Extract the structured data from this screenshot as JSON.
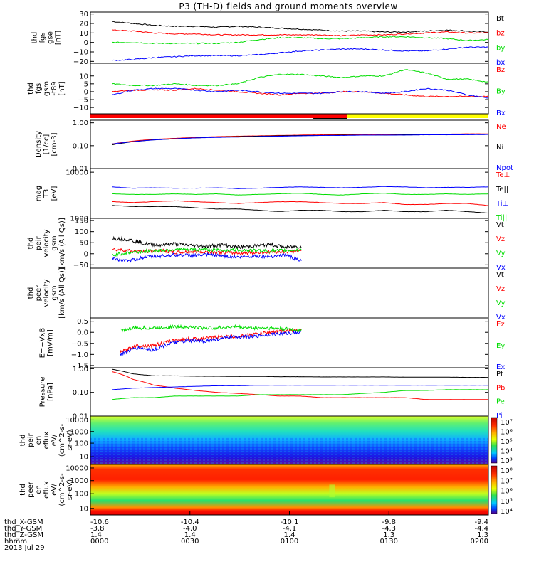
{
  "title": "P3 (TH-D) fields and ground moments overview",
  "date_label": "2013 Jul 29",
  "ephemeris": {
    "rows": [
      {
        "label": "thd_X-GSM",
        "values": [
          "-10.6",
          "-10.4",
          "-10.1",
          "-9.8",
          "-9.4"
        ]
      },
      {
        "label": "thd_Y-GSM",
        "values": [
          "-3.8",
          "-4.0",
          "-4.1",
          "-4.3",
          "-4.4"
        ]
      },
      {
        "label": "thd_Z-GSM",
        "values": [
          "1.4",
          "1.4",
          "1.4",
          "1.3",
          "1.3"
        ]
      },
      {
        "label": "hhmm",
        "values": [
          "0000",
          "0030",
          "0100",
          "0130",
          "0200"
        ]
      }
    ]
  },
  "colors": {
    "black": "#000000",
    "red": "#ff0000",
    "green": "#00dd00",
    "blue": "#0000ff",
    "yellow": "#ffff00"
  },
  "chart_data": [
    {
      "type": "line",
      "ylabel": [
        "thd",
        "fgs",
        "gse",
        "[nT]"
      ],
      "ylim": [
        -22,
        32
      ],
      "yticks": [
        {
          "v": 30,
          "t": "30"
        },
        {
          "v": 20,
          "t": "20"
        },
        {
          "v": 10,
          "t": "10"
        },
        {
          "v": 0,
          "t": "0"
        },
        {
          "v": -10,
          "t": "−10"
        },
        {
          "v": -20,
          "t": "−20"
        }
      ],
      "series": [
        {
          "name": "Bt",
          "color": "black",
          "y": [
            22,
            20,
            18,
            17,
            17,
            16,
            17,
            16,
            15,
            14,
            13,
            12,
            12,
            11,
            11,
            12,
            13,
            12,
            11
          ]
        },
        {
          "name": "bz",
          "color": "red",
          "y": [
            13,
            12,
            10,
            9,
            9,
            8,
            8,
            8,
            8,
            8,
            8,
            7,
            8,
            8,
            9,
            10,
            11,
            10,
            10
          ]
        },
        {
          "name": "by",
          "color": "green",
          "y": [
            0,
            0,
            -1,
            -1,
            -1,
            -1,
            0,
            3,
            5,
            5,
            4,
            4,
            5,
            6,
            6,
            5,
            4,
            2,
            3
          ]
        },
        {
          "name": "bx",
          "color": "blue",
          "y": [
            -19,
            -18,
            -16,
            -15,
            -14,
            -14,
            -14,
            -13,
            -11,
            -9,
            -8,
            -7,
            -7,
            -8,
            -9,
            -9,
            -7,
            -5,
            -5
          ]
        }
      ]
    },
    {
      "type": "line",
      "ylabel": [
        "thd",
        "fgs",
        "gsm",
        "-t89",
        "[nT]"
      ],
      "ylim": [
        -14,
        18
      ],
      "yticks": [
        {
          "v": 10,
          "t": "10"
        },
        {
          "v": 5,
          "t": "5"
        },
        {
          "v": 0,
          "t": "0"
        },
        {
          "v": -5,
          "t": "−5"
        },
        {
          "v": -10,
          "t": "−10"
        }
      ],
      "series": [
        {
          "name": "Bz",
          "color": "red",
          "y": [
            0,
            1,
            1,
            1,
            2,
            1,
            0,
            -1,
            -2,
            -1,
            -1,
            0,
            0,
            -1,
            -2,
            -3,
            -3,
            -3,
            -3
          ]
        },
        {
          "name": "By",
          "color": "green",
          "y": [
            5,
            4,
            4,
            5,
            4,
            4,
            5,
            9,
            11,
            11,
            10,
            9,
            10,
            10,
            14,
            12,
            8,
            8,
            6
          ]
        },
        {
          "name": "Bx",
          "color": "blue",
          "y": [
            -2,
            1,
            2,
            2,
            1,
            0,
            1,
            0,
            -1,
            -1,
            -1,
            0,
            0,
            -1,
            0,
            2,
            1,
            -2,
            -4
          ]
        }
      ]
    },
    {
      "type": "line",
      "ylabel": [
        "Density",
        "[1/cc]",
        "[cm-3]"
      ],
      "scale": "log",
      "ylim": [
        0.01,
        1.3
      ],
      "yticks": [
        {
          "v": 1.0,
          "t": "1.00"
        },
        {
          "v": 0.1,
          "t": "0.10"
        },
        {
          "v": 0.01,
          "t": "0.01"
        }
      ],
      "series": [
        {
          "name": "Ne",
          "color": "red",
          "y": [
            0.12,
            0.16,
            0.19,
            0.21,
            0.23,
            0.25,
            0.26,
            0.27,
            0.28,
            0.29,
            0.3,
            0.3,
            0.31,
            0.31,
            0.31,
            0.32,
            0.32,
            0.33,
            0.33
          ]
        },
        {
          "name": "Ni",
          "color": "black",
          "y": [
            0.11,
            0.15,
            0.18,
            0.2,
            0.22,
            0.24,
            0.25,
            0.26,
            0.27,
            0.28,
            0.28,
            0.29,
            0.29,
            0.29,
            0.3,
            0.3,
            0.3,
            0.31,
            0.31
          ]
        },
        {
          "name": "Npot",
          "color": "blue",
          "y": [
            0.12,
            0.15,
            0.18,
            0.2,
            0.22,
            0.23,
            0.24,
            0.25,
            0.26,
            0.27,
            0.28,
            0.28,
            0.29,
            0.29,
            0.29,
            0.3,
            0.3,
            0.3,
            0.31
          ]
        }
      ]
    },
    {
      "type": "line",
      "ylabel": [
        "mag",
        "T3",
        "[eV]"
      ],
      "scale": "log",
      "ylim": [
        1000,
        12000
      ],
      "yticks": [
        {
          "v": 10000,
          "t": "10000"
        },
        {
          "v": 1000,
          "t": "1000"
        }
      ],
      "series": [
        {
          "name": "Te⊥",
          "color": "red",
          "y": [
            2300,
            2200,
            2300,
            2400,
            2300,
            2200,
            2100,
            2200,
            2300,
            2300,
            2200,
            2100,
            2100,
            2200,
            2000,
            2000,
            2100,
            2100,
            1900
          ]
        },
        {
          "name": "Te||",
          "color": "black",
          "y": [
            1900,
            1800,
            1800,
            1800,
            1700,
            1600,
            1600,
            1500,
            1400,
            1500,
            1500,
            1400,
            1400,
            1500,
            1400,
            1400,
            1500,
            1400,
            1300
          ]
        },
        {
          "name": "Ti⊥",
          "color": "blue",
          "y": [
            4800,
            4500,
            4600,
            4500,
            4500,
            4600,
            4400,
            4500,
            4700,
            4800,
            4700,
            4600,
            4700,
            4900,
            4800,
            4600,
            4700,
            4700,
            4800
          ]
        },
        {
          "name": "Ti||",
          "color": "green",
          "y": [
            3400,
            3300,
            3300,
            3400,
            3300,
            3400,
            3200,
            3300,
            3400,
            3500,
            3300,
            3200,
            3400,
            3500,
            3300,
            3300,
            3400,
            3300,
            3400
          ]
        }
      ]
    },
    {
      "type": "line",
      "ylabel": [
        "thd",
        "peir",
        "velocity",
        "gsm",
        "[km/s (All Qs)]"
      ],
      "ylim": [
        -65,
        160
      ],
      "xmax_frac": 0.53,
      "yticks": [
        {
          "v": 150,
          "t": "150"
        },
        {
          "v": 100,
          "t": "100"
        },
        {
          "v": 50,
          "t": "50"
        },
        {
          "v": 0,
          "t": "0"
        },
        {
          "v": -50,
          "t": "−50"
        }
      ],
      "series": [
        {
          "name": "Vt",
          "color": "black",
          "y": [
            70,
            65,
            45,
            40,
            45,
            38,
            35,
            40,
            30,
            35,
            42,
            30,
            33
          ]
        },
        {
          "name": "Vz",
          "color": "red",
          "y": [
            20,
            15,
            10,
            15,
            5,
            10,
            8,
            5,
            3,
            5,
            8,
            10,
            12
          ]
        },
        {
          "name": "Vy",
          "color": "green",
          "y": [
            -5,
            5,
            10,
            15,
            20,
            18,
            20,
            15,
            18,
            15,
            12,
            15,
            18
          ]
        },
        {
          "name": "Vx",
          "color": "blue",
          "y": [
            -20,
            -35,
            -15,
            -10,
            -5,
            -8,
            -5,
            -10,
            -15,
            -10,
            -12,
            -5,
            -35
          ]
        }
      ]
    },
    {
      "type": "line",
      "ylabel": [
        "thd",
        "peer",
        "velocity",
        "gsm",
        "[km/s (All Qs)]"
      ],
      "ylim": [
        -65,
        160
      ],
      "legend_only": true,
      "series": [
        {
          "name": "Vt",
          "color": "black",
          "y": []
        },
        {
          "name": "Vz",
          "color": "red",
          "y": []
        },
        {
          "name": "Vy",
          "color": "green",
          "y": []
        },
        {
          "name": "Vx",
          "color": "blue",
          "y": []
        }
      ]
    },
    {
      "type": "line",
      "ylabel": [
        "E=−VxB",
        "[mV/m]"
      ],
      "ylim": [
        -1.6,
        0.65
      ],
      "xmin_frac": 0.075,
      "xmax_frac": 0.53,
      "yticks": [
        {
          "v": 0.5,
          "t": "0.5"
        },
        {
          "v": 0.0,
          "t": "0.0"
        },
        {
          "v": -0.5,
          "t": "−0.5"
        },
        {
          "v": -1.0,
          "t": "−1.0"
        },
        {
          "v": -1.5,
          "t": "−1.5"
        }
      ],
      "series": [
        {
          "name": "Ez",
          "color": "red",
          "y": [
            -0.9,
            -0.6,
            -0.6,
            -0.4,
            -0.3,
            -0.3,
            -0.2,
            -0.2,
            -0.1,
            0.0,
            0.05,
            0.1
          ]
        },
        {
          "name": "Ey",
          "color": "green",
          "y": [
            0.1,
            0.2,
            0.2,
            0.25,
            0.25,
            0.2,
            0.2,
            0.25,
            0.2,
            0.2,
            0.15,
            0.1
          ]
        },
        {
          "name": "Ex",
          "color": "blue",
          "y": [
            -1.0,
            -0.7,
            -0.8,
            -0.5,
            -0.4,
            -0.4,
            -0.3,
            -0.2,
            -0.2,
            -0.1,
            -0.05,
            0.0
          ]
        }
      ]
    },
    {
      "type": "line",
      "ylabel": [
        "Pressure",
        "[nPa]"
      ],
      "scale": "log",
      "ylim": [
        0.01,
        1.1
      ],
      "yticks": [
        {
          "v": 1.0,
          "t": "1.00"
        },
        {
          "v": 0.1,
          "t": "0.10"
        },
        {
          "v": 0.01,
          "t": "0.01"
        }
      ],
      "series": [
        {
          "name": "Pt",
          "color": "black",
          "y": [
            0.95,
            0.6,
            0.5,
            0.5,
            0.48,
            0.48,
            0.47,
            0.47,
            0.46,
            0.46,
            0.45,
            0.45,
            0.45,
            0.45,
            0.44,
            0.44,
            0.44,
            0.43,
            0.43
          ]
        },
        {
          "name": "Pb",
          "color": "red",
          "y": [
            0.75,
            0.35,
            0.2,
            0.15,
            0.12,
            0.1,
            0.09,
            0.08,
            0.07,
            0.07,
            0.06,
            0.06,
            0.06,
            0.06,
            0.06,
            0.05,
            0.05,
            0.05,
            0.05
          ]
        },
        {
          "name": "Pe",
          "color": "green",
          "y": [
            0.05,
            0.06,
            0.06,
            0.07,
            0.07,
            0.07,
            0.07,
            0.08,
            0.08,
            0.08,
            0.08,
            0.08,
            0.09,
            0.1,
            0.12,
            0.12,
            0.13,
            0.13,
            0.13
          ]
        },
        {
          "name": "Pi",
          "color": "blue",
          "y": [
            0.13,
            0.15,
            0.16,
            0.17,
            0.18,
            0.19,
            0.19,
            0.2,
            0.2,
            0.2,
            0.2,
            0.2,
            0.2,
            0.2,
            0.2,
            0.2,
            0.2,
            0.2,
            0.2
          ]
        }
      ]
    },
    {
      "type": "heatmap",
      "ylabel": [
        "thd",
        "peir",
        "en",
        "eflux",
        "eV/",
        "(cm^2-s-",
        "sr-eV)"
      ],
      "yticks": [
        {
          "f": 0.08,
          "t": "10000"
        },
        {
          "f": 0.32,
          "t": "1000"
        },
        {
          "f": 0.56,
          "t": "100"
        },
        {
          "f": 0.84,
          "t": "10"
        }
      ],
      "colorbar_ticks": [
        "10⁷",
        "10⁶",
        "10⁵",
        "10⁴",
        "10³"
      ]
    },
    {
      "type": "heatmap",
      "ylabel": [
        "thd",
        "peer",
        "en",
        "eflux",
        "eV/",
        "(cm^2-s-",
        "sr-eV)"
      ],
      "yticks": [
        {
          "f": 0.07,
          "t": "10000"
        },
        {
          "f": 0.32,
          "t": "1000"
        },
        {
          "f": 0.58,
          "t": "100"
        },
        {
          "f": 0.87,
          "t": "10"
        }
      ],
      "colorbar_ticks": [
        "10⁸",
        "10⁷",
        "10⁶",
        "10⁵",
        "10⁴"
      ]
    }
  ]
}
